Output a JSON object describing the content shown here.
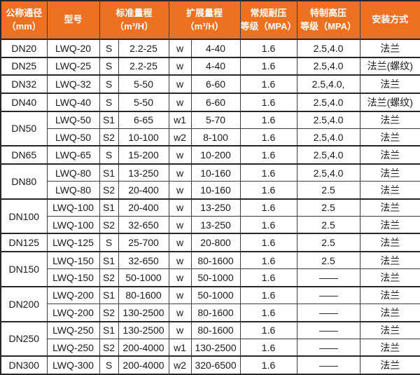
{
  "table": {
    "colors": {
      "header_bg": "#ee7120",
      "header_text": "#ffffff",
      "border": "#3e3e3e",
      "border_thick": "#262626",
      "text": "#1a1a1a",
      "row_bg": "#ffffff"
    },
    "header_labels": [
      "公称通径\n（mm）",
      "型号",
      "标准量程\n（m³/H）",
      "扩展量程\n（m³/H）",
      "常规耐压\n等级（MPA）",
      "特制高压\n等级（MPA）",
      "安装方式"
    ],
    "groups": [
      {
        "dn": "DN20",
        "rows": [
          {
            "model": "LWQ-20",
            "std_code": "S",
            "std_range": "2.2-25",
            "ext_code": "w",
            "ext_range": "4-40",
            "normal_mpa": "1.6",
            "high_mpa": "2.5,4.0",
            "install": "法兰"
          }
        ]
      },
      {
        "dn": "DN25",
        "rows": [
          {
            "model": "LWQ-25",
            "std_code": "S",
            "std_range": "2.2-25",
            "ext_code": "w",
            "ext_range": "4-40",
            "normal_mpa": "1.6",
            "high_mpa": "2.5,4.0",
            "install": "法兰(螺纹)"
          }
        ]
      },
      {
        "dn": "DN32",
        "rows": [
          {
            "model": "LWQ-32",
            "std_code": "S",
            "std_range": "5-50",
            "ext_code": "w",
            "ext_range": "6-60",
            "normal_mpa": "1.6",
            "high_mpa": "2.5,4.0,",
            "install": "法兰"
          }
        ]
      },
      {
        "dn": "DN40",
        "rows": [
          {
            "model": "LWQ-40",
            "std_code": "S",
            "std_range": "5-50",
            "ext_code": "w",
            "ext_range": "6-60",
            "normal_mpa": "1.6",
            "high_mpa": "2.5,4.0",
            "install": "法兰(螺纹)"
          }
        ]
      },
      {
        "dn": "DN50",
        "rows": [
          {
            "model": "LWQ-50",
            "std_code": "S1",
            "std_range": "6-65",
            "ext_code": "w1",
            "ext_range": "5-70",
            "normal_mpa": "1.6",
            "high_mpa": "2.5,4.0",
            "install": "法兰"
          },
          {
            "model": "LWQ-50",
            "std_code": "S2",
            "std_range": "10-100",
            "ext_code": "w2",
            "ext_range": "8-100",
            "normal_mpa": "1.6",
            "high_mpa": "2.5,4.0",
            "install": "法兰"
          }
        ]
      },
      {
        "dn": "DN65",
        "rows": [
          {
            "model": "LWQ-65",
            "std_code": "S",
            "std_range": "15-200",
            "ext_code": "w",
            "ext_range": "10-200",
            "normal_mpa": "1.6",
            "high_mpa": "2.5,4.0",
            "install": "法兰"
          }
        ]
      },
      {
        "dn": "DN80",
        "rows": [
          {
            "model": "LWQ-80",
            "std_code": "S1",
            "std_range": "13-250",
            "ext_code": "w",
            "ext_range": "10-160",
            "normal_mpa": "1.6",
            "high_mpa": "2.5,4.0",
            "install": "法兰"
          },
          {
            "model": "LWQ-80",
            "std_code": "S2",
            "std_range": "20-400",
            "ext_code": "w",
            "ext_range": "10-160",
            "normal_mpa": "1.6",
            "high_mpa": "2.5",
            "install": "法兰"
          }
        ]
      },
      {
        "dn": "DN100",
        "rows": [
          {
            "model": "LWQ-100",
            "std_code": "S1",
            "std_range": "20-400",
            "ext_code": "w",
            "ext_range": "13-250",
            "normal_mpa": "1.6",
            "high_mpa": "2.5",
            "install": "法兰"
          },
          {
            "model": "LWQ-100",
            "std_code": "S2",
            "std_range": "32-650",
            "ext_code": "w",
            "ext_range": "13-250",
            "normal_mpa": "1.6",
            "high_mpa": "2.5",
            "install": "法兰"
          }
        ]
      },
      {
        "dn": "DN125",
        "rows": [
          {
            "model": "LWQ-125",
            "std_code": "S",
            "std_range": "25-700",
            "ext_code": "w",
            "ext_range": "20-800",
            "normal_mpa": "1.6",
            "high_mpa": "2.5",
            "install": "法兰"
          }
        ]
      },
      {
        "dn": "DN150",
        "rows": [
          {
            "model": "LWQ-150",
            "std_code": "S1",
            "std_range": "32-650",
            "ext_code": "w",
            "ext_range": "80-1600",
            "normal_mpa": "1.6",
            "high_mpa": "2.5",
            "install": "法兰"
          },
          {
            "model": "LWQ-150",
            "std_code": "S2",
            "std_range": "50-1000",
            "ext_code": "w",
            "ext_range": "50-1000",
            "normal_mpa": "1.6",
            "high_mpa": "——",
            "install": "法兰"
          }
        ]
      },
      {
        "dn": "DN200",
        "rows": [
          {
            "model": "LWQ-200",
            "std_code": "S1",
            "std_range": "80-1600",
            "ext_code": "w",
            "ext_range": "50-1000",
            "normal_mpa": "1.6",
            "high_mpa": "——",
            "install": "法兰"
          },
          {
            "model": "LWQ-200",
            "std_code": "S2",
            "std_range": "130-2500",
            "ext_code": "w",
            "ext_range": "80-1600",
            "normal_mpa": "1.6",
            "high_mpa": "——",
            "install": "法兰"
          }
        ]
      },
      {
        "dn": "DN250",
        "rows": [
          {
            "model": "LWQ-250",
            "std_code": "S1",
            "std_range": "130-2500",
            "ext_code": "w",
            "ext_range": "80-1600",
            "normal_mpa": "1.6",
            "high_mpa": "——",
            "install": "法兰"
          },
          {
            "model": "LWQ-250",
            "std_code": "S2",
            "std_range": "200-4000",
            "ext_code": "w1",
            "ext_range": "130-2500",
            "normal_mpa": "1.6",
            "high_mpa": "——",
            "install": "法兰"
          }
        ]
      },
      {
        "dn": "DN300",
        "rows": [
          {
            "model": "LWQ-300",
            "std_code": "S",
            "std_range": "200-4000",
            "ext_code": "w2",
            "ext_range": "320-6500",
            "normal_mpa": "1.6",
            "high_mpa": "——",
            "install": "法兰"
          }
        ]
      }
    ]
  }
}
